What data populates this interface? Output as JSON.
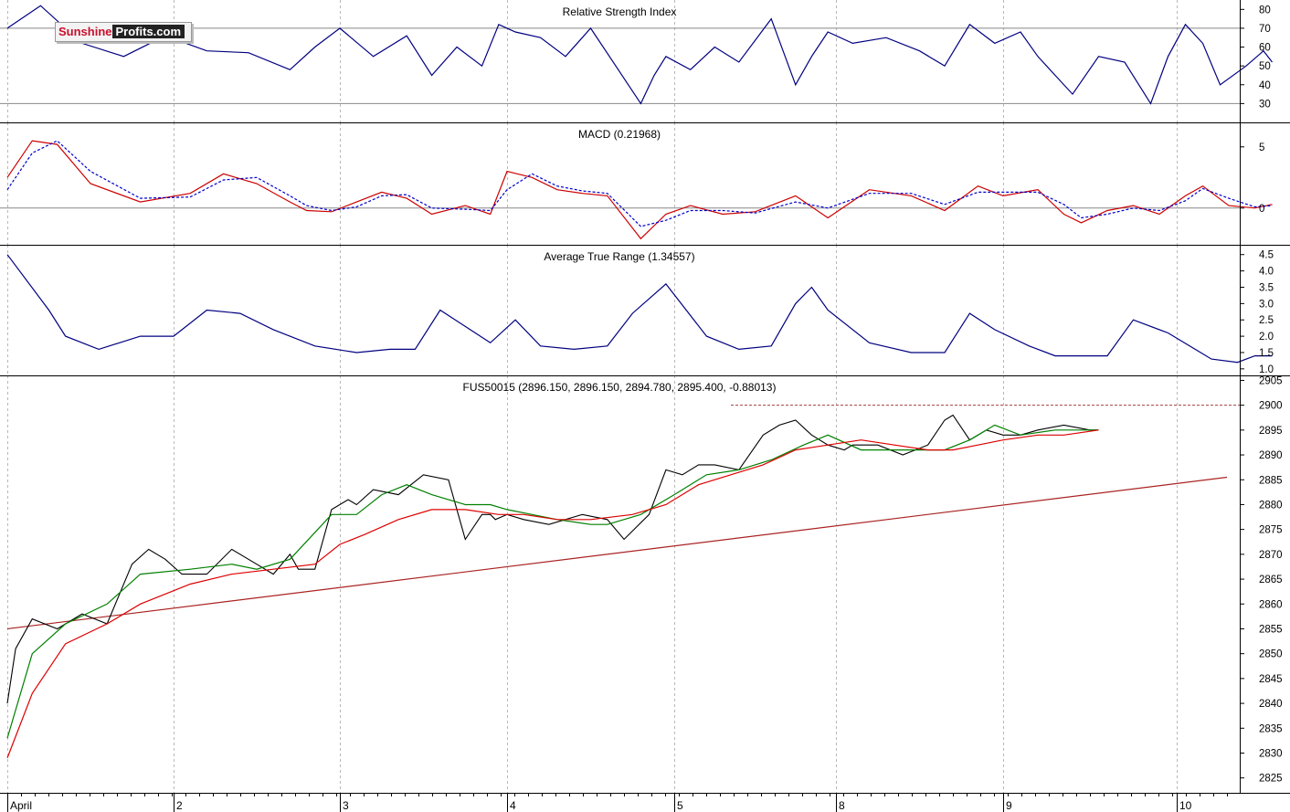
{
  "logo": {
    "part1": "Sunshine",
    "part2": "Profits.com"
  },
  "chart_data": [
    {
      "type": "line",
      "title": "Relative Strength Index",
      "ylim": [
        20,
        85
      ],
      "yticks": [
        30,
        40,
        50,
        60,
        70,
        80
      ],
      "reference_lines": [
        30,
        70
      ],
      "series": [
        {
          "color": "#000080",
          "x": [
            0,
            0.2,
            0.45,
            0.7,
            0.95,
            1.2,
            1.45,
            1.7,
            1.85,
            2.0,
            2.2,
            2.4,
            2.55,
            2.7,
            2.85,
            2.95,
            3.05,
            3.2,
            3.35,
            3.5,
            3.65,
            3.8,
            3.88,
            3.95,
            4.1,
            4.25,
            4.4,
            4.6,
            4.75,
            4.85,
            4.95,
            5.1,
            5.3,
            5.5,
            5.65,
            5.8,
            5.95,
            6.1,
            6.2,
            6.3,
            6.4,
            6.55,
            6.7,
            6.85,
            6.95,
            7.05,
            7.15,
            7.25,
            7.4,
            7.5,
            7.55
          ],
          "values": [
            70,
            82,
            62,
            55,
            66,
            58,
            57,
            48,
            60,
            70,
            55,
            66,
            45,
            60,
            50,
            72,
            68,
            65,
            55,
            70,
            50,
            30,
            45,
            55,
            48,
            60,
            52,
            75,
            40,
            55,
            68,
            62,
            65,
            58,
            50,
            72,
            62,
            68,
            55,
            45,
            35,
            55,
            52,
            30,
            55,
            72,
            62,
            40,
            50,
            58,
            52
          ]
        }
      ]
    },
    {
      "type": "line",
      "title": "MACD (0.21968)",
      "ylim": [
        -3,
        7
      ],
      "yticks": [
        0,
        5
      ],
      "reference_lines": [
        0
      ],
      "series": [
        {
          "color": "#cc0000",
          "x": [
            0,
            0.15,
            0.3,
            0.5,
            0.8,
            1.1,
            1.3,
            1.5,
            1.7,
            1.8,
            1.95,
            2.1,
            2.25,
            2.4,
            2.55,
            2.75,
            2.9,
            3.0,
            3.15,
            3.3,
            3.45,
            3.6,
            3.8,
            3.95,
            4.1,
            4.3,
            4.5,
            4.75,
            4.95,
            5.2,
            5.45,
            5.65,
            5.85,
            6.0,
            6.2,
            6.35,
            6.45,
            6.6,
            6.75,
            6.9,
            7.05,
            7.15,
            7.3,
            7.45,
            7.55
          ],
          "values": [
            2.5,
            5.5,
            5.2,
            2.0,
            0.5,
            1.2,
            2.8,
            2.0,
            0.5,
            -0.2,
            -0.3,
            0.5,
            1.3,
            0.8,
            -0.5,
            0.2,
            -0.5,
            3.0,
            2.5,
            1.5,
            1.2,
            1.0,
            -2.5,
            -0.5,
            0.2,
            -0.5,
            -0.3,
            1.0,
            -0.8,
            1.5,
            1.0,
            -0.2,
            1.8,
            1.0,
            1.5,
            -0.5,
            -1.2,
            -0.2,
            0.2,
            -0.5,
            1.0,
            1.8,
            0.2,
            0,
            0.3
          ]
        },
        {
          "color": "#0000cc",
          "dashed": true,
          "x": [
            0,
            0.15,
            0.3,
            0.5,
            0.8,
            1.1,
            1.3,
            1.5,
            1.7,
            1.8,
            1.95,
            2.1,
            2.25,
            2.4,
            2.55,
            2.75,
            2.9,
            3.0,
            3.15,
            3.3,
            3.45,
            3.6,
            3.8,
            3.95,
            4.1,
            4.3,
            4.5,
            4.75,
            4.95,
            5.2,
            5.45,
            5.65,
            5.85,
            6.0,
            6.2,
            6.35,
            6.45,
            6.6,
            6.75,
            6.9,
            7.05,
            7.15,
            7.3,
            7.45,
            7.55
          ],
          "values": [
            1.5,
            4.5,
            5.5,
            3.0,
            0.8,
            0.9,
            2.3,
            2.5,
            1.0,
            0.2,
            -0.2,
            0.1,
            1.0,
            1.1,
            0.0,
            -0.1,
            -0.2,
            1.5,
            2.8,
            1.8,
            1.4,
            1.2,
            -1.5,
            -1.0,
            -0.2,
            -0.2,
            -0.4,
            0.5,
            0.0,
            1.2,
            1.2,
            0.3,
            1.3,
            1.3,
            1.3,
            0.3,
            -0.8,
            -0.5,
            0.0,
            -0.2,
            0.6,
            1.6,
            0.8,
            0.1,
            0.2
          ]
        }
      ]
    },
    {
      "type": "line",
      "title": "Average True Range (1.34557)",
      "ylim": [
        0.8,
        4.8
      ],
      "yticks": [
        1.0,
        1.5,
        2.0,
        2.5,
        3.0,
        3.5,
        4.0,
        4.5
      ],
      "series": [
        {
          "color": "#000080",
          "x": [
            0,
            0.25,
            0.35,
            0.55,
            0.8,
            1.0,
            1.2,
            1.4,
            1.6,
            1.85,
            2.1,
            2.3,
            2.45,
            2.6,
            2.75,
            2.9,
            3.05,
            3.2,
            3.4,
            3.6,
            3.75,
            3.95,
            4.2,
            4.4,
            4.6,
            4.75,
            4.85,
            4.95,
            5.2,
            5.45,
            5.65,
            5.8,
            5.95,
            6.15,
            6.3,
            6.5,
            6.6,
            6.75,
            6.95,
            7.2,
            7.35,
            7.45,
            7.55
          ],
          "values": [
            4.5,
            2.8,
            2.0,
            1.6,
            2.0,
            2.0,
            2.8,
            2.7,
            2.2,
            1.7,
            1.5,
            1.6,
            1.6,
            2.8,
            2.3,
            1.8,
            2.5,
            1.7,
            1.6,
            1.7,
            2.7,
            3.6,
            2.0,
            1.6,
            1.7,
            3.0,
            3.5,
            2.8,
            1.8,
            1.5,
            1.5,
            2.7,
            2.2,
            1.7,
            1.4,
            1.4,
            1.4,
            2.5,
            2.1,
            1.3,
            1.2,
            1.4,
            1.4
          ]
        }
      ]
    },
    {
      "type": "line",
      "title": "FUS50015 (2896.150, 2896.150, 2894.780, 2895.400, -0.88013)",
      "ylim": [
        2822,
        2906
      ],
      "yticks": [
        2825,
        2830,
        2835,
        2840,
        2845,
        2850,
        2855,
        2860,
        2865,
        2870,
        2875,
        2880,
        2885,
        2890,
        2895,
        2900,
        2905
      ],
      "x_tick_labels": [
        {
          "x": 0,
          "label": "April"
        },
        {
          "x": 1,
          "label": "2"
        },
        {
          "x": 2,
          "label": "3"
        },
        {
          "x": 3,
          "label": "4"
        },
        {
          "x": 4,
          "label": "5"
        },
        {
          "x": 5,
          "label": "8"
        },
        {
          "x": 6,
          "label": "9"
        },
        {
          "x": 7,
          "label": "10"
        }
      ],
      "xlim": [
        0,
        7.35
      ],
      "resistance_level": 2900,
      "trend_line": {
        "x": [
          0,
          7.3
        ],
        "values": [
          2855,
          2885.5
        ],
        "color": "#aa2222"
      },
      "series": [
        {
          "name": "price",
          "color": "#000000",
          "x": [
            0,
            0.05,
            0.15,
            0.3,
            0.45,
            0.6,
            0.75,
            0.85,
            0.95,
            1.05,
            1.2,
            1.35,
            1.5,
            1.6,
            1.7,
            1.75,
            1.85,
            1.95,
            2.05,
            2.1,
            2.2,
            2.35,
            2.5,
            2.65,
            2.75,
            2.85,
            2.9,
            2.93,
            3.0,
            3.1,
            3.25,
            3.45,
            3.6,
            3.7,
            3.85,
            3.95,
            4.05,
            4.15,
            4.25,
            4.4,
            4.55,
            4.65,
            4.75,
            4.85,
            4.95,
            5.05,
            5.1,
            5.15,
            5.25,
            5.4,
            5.55,
            5.65,
            5.7,
            5.8,
            5.9,
            6.0,
            6.1,
            6.2,
            6.35,
            6.5,
            6.55
          ],
          "values": [
            2840,
            2851,
            2857,
            2855,
            2858,
            2856,
            2868,
            2871,
            2869,
            2866,
            2866,
            2871,
            2868,
            2866,
            2870,
            2867,
            2867,
            2879,
            2881,
            2880,
            2883,
            2882,
            2886,
            2885,
            2873,
            2878,
            2878,
            2877,
            2878,
            2877,
            2876,
            2878,
            2877,
            2873,
            2878,
            2887,
            2886,
            2888,
            2888,
            2887,
            2894,
            2896,
            2897,
            2894,
            2892,
            2891,
            2892,
            2892,
            2892,
            2890,
            2892,
            2897,
            2898,
            2893,
            2895,
            2894,
            2894,
            2895,
            2896,
            2895,
            2895
          ]
        },
        {
          "name": "MA (green)",
          "color": "#008000",
          "x": [
            0,
            0.15,
            0.35,
            0.6,
            0.8,
            1.1,
            1.35,
            1.5,
            1.7,
            1.95,
            2.1,
            2.25,
            2.4,
            2.55,
            2.75,
            2.9,
            3.0,
            3.15,
            3.3,
            3.5,
            3.6,
            3.8,
            4.0,
            4.2,
            4.4,
            4.6,
            4.8,
            4.95,
            5.15,
            5.35,
            5.55,
            5.65,
            5.8,
            5.95,
            6.1,
            6.3,
            6.55
          ],
          "values": [
            2833,
            2850,
            2856,
            2860,
            2866,
            2867,
            2868,
            2867,
            2869,
            2878,
            2878,
            2882,
            2884,
            2882,
            2880,
            2880,
            2879,
            2878,
            2877,
            2876,
            2876,
            2878,
            2882,
            2886,
            2887,
            2889,
            2892,
            2894,
            2891,
            2891,
            2891,
            2891,
            2893,
            2896,
            2894,
            2895,
            2895
          ]
        },
        {
          "name": "MA (red)",
          "color": "#dd0000",
          "x": [
            0,
            0.15,
            0.35,
            0.6,
            0.8,
            1.1,
            1.35,
            1.6,
            1.85,
            2.0,
            2.15,
            2.35,
            2.55,
            2.75,
            2.95,
            3.1,
            3.3,
            3.5,
            3.75,
            3.95,
            4.15,
            4.35,
            4.55,
            4.75,
            4.95,
            5.15,
            5.35,
            5.55,
            5.7,
            5.85,
            6.0,
            6.2,
            6.35,
            6.55
          ],
          "values": [
            2829,
            2842,
            2852,
            2856,
            2860,
            2864,
            2866,
            2867,
            2868,
            2872,
            2874,
            2877,
            2879,
            2879,
            2878,
            2878,
            2877,
            2877,
            2878,
            2880,
            2884,
            2886,
            2888,
            2891,
            2892,
            2893,
            2892,
            2891,
            2891,
            2892,
            2893,
            2894,
            2894,
            2895
          ]
        }
      ]
    }
  ]
}
